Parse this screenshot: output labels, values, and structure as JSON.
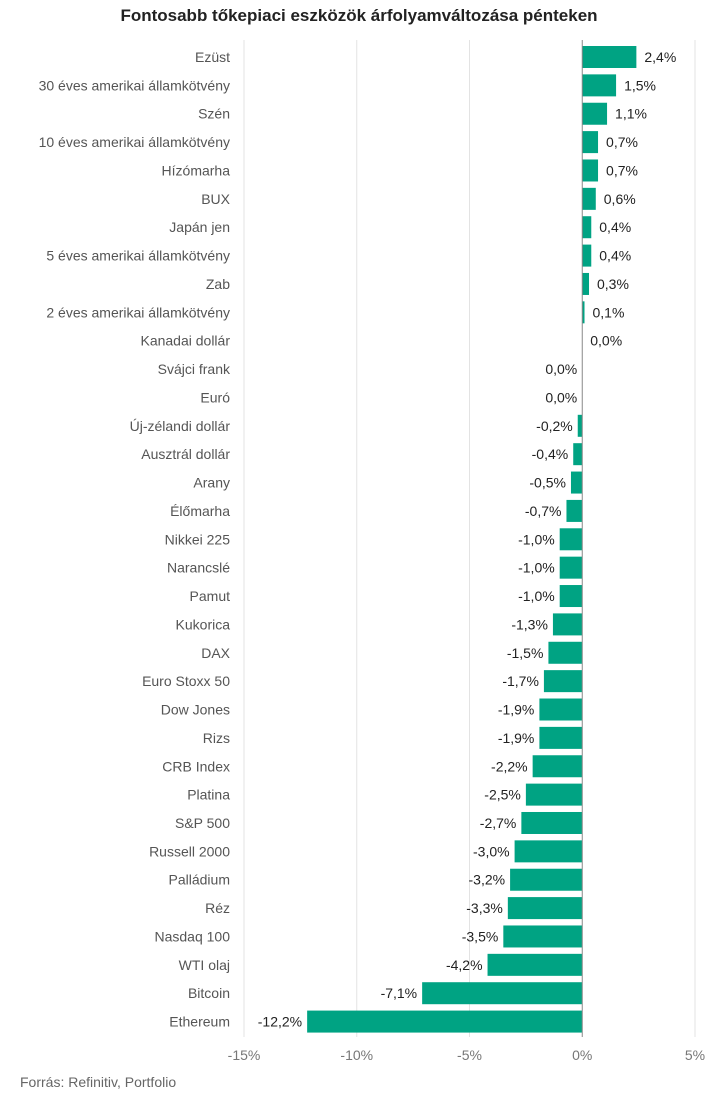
{
  "chart_data": {
    "type": "bar",
    "orientation": "horizontal",
    "title": "Fontosabb tőkepiaci eszközök árfolyamváltozása pénteken",
    "categories": [
      "Ezüst",
      "30 éves amerikai államkötvény",
      "Szén",
      "10 éves amerikai államkötvény",
      "Hízómarha",
      "BUX",
      "Japán jen",
      "5 éves amerikai államkötvény",
      "Zab",
      "2 éves amerikai államkötvény",
      "Kanadai dollár",
      "Svájci frank",
      "Euró",
      "Új-zélandi dollár",
      "Ausztrál dollár",
      "Arany",
      "Élőmarha",
      "Nikkei 225",
      "Narancslé",
      "Pamut",
      "Kukorica",
      "DAX",
      "Euro Stoxx 50",
      "Dow Jones",
      "Rizs",
      "CRB Index",
      "Platina",
      "S&P 500",
      "Russell 2000",
      "Palládium",
      "Réz",
      "Nasdaq 100",
      "WTI olaj",
      "Bitcoin",
      "Ethereum"
    ],
    "values": [
      2.4,
      1.5,
      1.1,
      0.7,
      0.7,
      0.6,
      0.4,
      0.4,
      0.3,
      0.1,
      0.0,
      0.0,
      0.0,
      -0.2,
      -0.4,
      -0.5,
      -0.7,
      -1.0,
      -1.0,
      -1.0,
      -1.3,
      -1.5,
      -1.7,
      -1.9,
      -1.9,
      -2.2,
      -2.5,
      -2.7,
      -3.0,
      -3.2,
      -3.3,
      -3.5,
      -4.2,
      -7.1,
      -12.2
    ],
    "value_labels": [
      "2,4%",
      "1,5%",
      "1,1%",
      "0,7%",
      "0,7%",
      "0,6%",
      "0,4%",
      "0,4%",
      "0,3%",
      "0,1%",
      "0,0%",
      "0,0%",
      "0,0%",
      "-0,2%",
      "-0,4%",
      "-0,5%",
      "-0,7%",
      "-1,0%",
      "-1,0%",
      "-1,0%",
      "-1,3%",
      "-1,5%",
      "-1,7%",
      "-1,9%",
      "-1,9%",
      "-2,2%",
      "-2,5%",
      "-2,7%",
      "-3,0%",
      "-3,2%",
      "-3,3%",
      "-3,5%",
      "-4,2%",
      "-7,1%",
      "-12,2%"
    ],
    "xlim": [
      -15,
      5
    ],
    "xticks": [
      -15,
      -10,
      -5,
      0,
      5
    ],
    "xtick_labels": [
      "-15%",
      "-10%",
      "-5%",
      "0%",
      "5%"
    ],
    "bar_color": "#00a383",
    "grid": true
  },
  "source": "Forrás: Refinitiv, Portfolio"
}
